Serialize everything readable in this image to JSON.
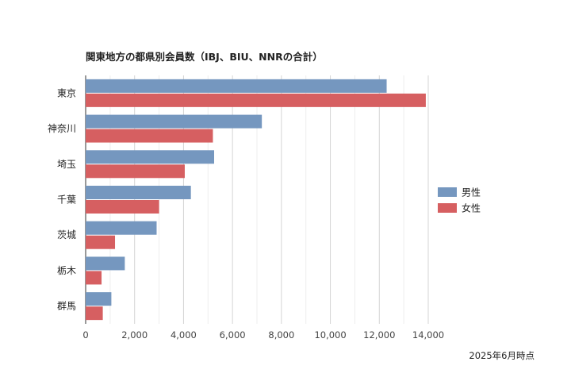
{
  "chart_data": {
    "type": "bar",
    "orientation": "horizontal",
    "title": "関東地方の都県別会員数（IBJ、BIU、NNRの合計）",
    "categories": [
      "東京",
      "神奈川",
      "埼玉",
      "千葉",
      "茨城",
      "栃木",
      "群馬"
    ],
    "series": [
      {
        "name": "男性",
        "color": "#7597bf",
        "values": [
          12300,
          7200,
          5250,
          4300,
          2900,
          1600,
          1050
        ]
      },
      {
        "name": "女性",
        "color": "#d65f61",
        "values": [
          13900,
          5200,
          4050,
          3000,
          1200,
          650,
          700
        ]
      }
    ],
    "x_ticks": [
      "0",
      "2,000",
      "4,000",
      "6,000",
      "8,000",
      "10,000",
      "12,000",
      "14,000"
    ],
    "xlim": [
      0,
      14000
    ],
    "grid": true,
    "legend_position": "right",
    "footnote": "2025年6月時点"
  }
}
